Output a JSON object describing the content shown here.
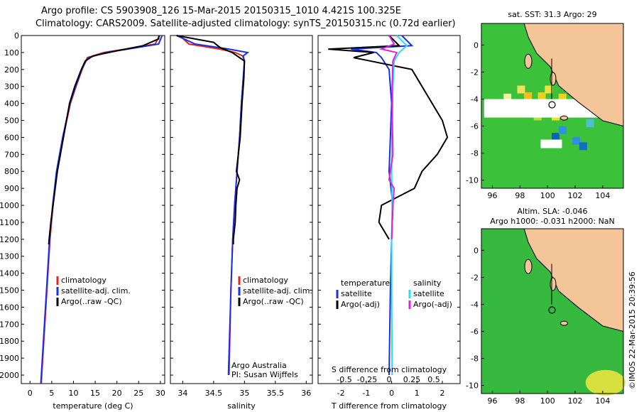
{
  "header": {
    "line1": "Argo profile: CS 5903908_126 15-Mar-2015 20150315_1010 4.421S 100.325E",
    "line2": "Climatology: CARS2009. Satellite-adjusted climatology: synTS_20150315.nc (0.72d earlier)"
  },
  "colors": {
    "climatology": "#e8231c",
    "satellite": "#1a2ee8",
    "argo": "#000000",
    "sat_cyan": "#22e0f0",
    "argo_magenta": "#e020e0",
    "land": "#f5c59a",
    "ocean_green": "#2fbf3a"
  },
  "depth_axis": {
    "ticks": [
      0,
      100,
      200,
      300,
      400,
      500,
      600,
      700,
      800,
      900,
      1000,
      1100,
      1200,
      1300,
      1400,
      1500,
      1600,
      1700,
      1800,
      1900,
      2000
    ]
  },
  "chart_data": [
    {
      "type": "line",
      "panel": "temperature",
      "xlabel": "temperature (deg C)",
      "xticks": [
        0,
        5,
        10,
        15,
        20,
        25,
        30
      ],
      "xlim": [
        -2,
        31
      ],
      "ylim": [
        2050,
        0
      ],
      "legend": [
        "climatology",
        "satellite-adj. clim.",
        "Argo(..raw -QC)"
      ],
      "series": [
        {
          "name": "climatology",
          "depth": [
            0,
            50,
            80,
            100,
            130,
            150,
            200,
            300,
            400,
            600,
            800,
            1000,
            1200,
            1500,
            2000,
            2050
          ],
          "values": [
            29.8,
            28.8,
            22,
            17,
            13.2,
            12.8,
            12.0,
            10.6,
            9.3,
            7.6,
            6.2,
            5.3,
            4.6,
            3.9,
            2.7,
            2.6
          ]
        },
        {
          "name": "satellite-adj. clim.",
          "depth": [
            0,
            50,
            80,
            100,
            130,
            150,
            200,
            300,
            400,
            600,
            800,
            1000,
            1200,
            1500,
            2000,
            2050
          ],
          "values": [
            30.4,
            29.6,
            22.5,
            17.5,
            13.5,
            12.9,
            11.9,
            10.5,
            9.2,
            7.5,
            6.1,
            5.2,
            4.5,
            3.8,
            2.6,
            2.5
          ]
        },
        {
          "name": "Argo(..raw -QC)",
          "depth": [
            0,
            20,
            60,
            90,
            120,
            150,
            200,
            300,
            400,
            600,
            800,
            1000,
            1100,
            1200,
            1230
          ],
          "values": [
            29.7,
            29.6,
            26,
            20,
            14.5,
            12.7,
            11.8,
            10.3,
            9.1,
            7.7,
            6.3,
            5.3,
            4.8,
            4.4,
            4.3
          ]
        }
      ]
    },
    {
      "type": "line",
      "panel": "salinity",
      "xlabel": "salinity",
      "xticks": [
        34,
        34.5,
        35,
        35.5,
        36
      ],
      "xlim": [
        33.8,
        36.1
      ],
      "ylim": [
        2050,
        0
      ],
      "legend": [
        "climatology",
        "satellite-adj. clim.",
        "Argo(..raw -QC)"
      ],
      "annotation": [
        "Argo Australia",
        "PI: Susan Wijffels"
      ],
      "series": [
        {
          "name": "climatology",
          "depth": [
            0,
            50,
            80,
            100,
            120,
            150,
            250,
            400,
            600,
            800,
            1000,
            1200,
            1500,
            2000
          ],
          "values": [
            33.95,
            34.1,
            34.6,
            34.85,
            34.97,
            35.0,
            34.98,
            34.95,
            34.92,
            34.88,
            34.84,
            34.81,
            34.78,
            34.75
          ]
        },
        {
          "name": "satellite-adj. clim.",
          "depth": [
            0,
            50,
            80,
            100,
            120,
            150,
            250,
            400,
            600,
            800,
            1000,
            1200,
            1500,
            2000
          ],
          "values": [
            33.9,
            34.2,
            34.75,
            35.05,
            34.98,
            35.0,
            34.98,
            34.95,
            34.92,
            34.88,
            34.84,
            34.81,
            34.78,
            34.74
          ]
        },
        {
          "name": "Argo(..raw -QC)",
          "depth": [
            0,
            40,
            70,
            100,
            150,
            250,
            400,
            600,
            800,
            850,
            900,
            1000,
            1100,
            1200,
            1230
          ],
          "values": [
            33.9,
            34.5,
            34.6,
            34.8,
            35.0,
            34.99,
            34.96,
            34.93,
            34.87,
            34.92,
            34.88,
            34.86,
            34.85,
            34.82,
            34.82
          ]
        }
      ]
    },
    {
      "type": "line",
      "panel": "difference",
      "xlabel": "T difference from climatology",
      "xlabel_top": "S difference from climatology",
      "xticks": [
        -2,
        -1,
        0,
        1,
        2
      ],
      "xticks_top": [
        "-0.5",
        "-0.25",
        "0",
        "0.25",
        "0.5"
      ],
      "xlim": [
        -2.9,
        2.7
      ],
      "ylim": [
        2050,
        0
      ],
      "legend_temperature_title": "temperature",
      "legend_salinity_title": "salinity",
      "legend_temperature": [
        "satellite",
        "Argo(-adj)"
      ],
      "legend_salinity": [
        "satellite",
        "Argo(-adj)"
      ],
      "series": [
        {
          "name": "temperature satellite",
          "depth": [
            0,
            60,
            80,
            100,
            130,
            200,
            400,
            600,
            800,
            1000,
            1200,
            1500,
            2000
          ],
          "values": [
            0.4,
            0.8,
            -1.6,
            -0.6,
            -0.4,
            -0.1,
            0.0,
            -0.05,
            -0.1,
            0.05,
            0.0,
            -0.05,
            -0.1
          ]
        },
        {
          "name": "temperature Argo(-adj)",
          "depth": [
            0,
            60,
            80,
            100,
            130,
            200,
            300,
            400,
            500,
            600,
            700,
            800,
            900,
            1000,
            1100,
            1200
          ],
          "values": [
            -0.1,
            0.3,
            -2.5,
            -0.7,
            -1.5,
            0.8,
            1.2,
            1.6,
            2.0,
            2.2,
            1.8,
            1.2,
            0.9,
            -0.4,
            -0.5,
            -0.1
          ]
        },
        {
          "name": "salinity satellite",
          "depth": [
            0,
            60,
            100,
            150,
            300,
            500,
            800,
            1000,
            1200,
            1500,
            2000
          ],
          "values": [
            0.2,
            0.6,
            0.3,
            0.1,
            0.05,
            0.02,
            0.0,
            0.02,
            0.0,
            0.0,
            0.02
          ]
        },
        {
          "name": "salinity Argo(-adj)",
          "depth": [
            0,
            50,
            80,
            100,
            150,
            300,
            500,
            700,
            850,
            900,
            1000,
            1200
          ],
          "values": [
            -0.1,
            0.1,
            -0.4,
            0.2,
            0.05,
            0.02,
            0.03,
            0.05,
            -0.1,
            0.1,
            0.05,
            0.0
          ]
        }
      ]
    }
  ],
  "maps": {
    "sst": {
      "title": "sat. SST: 31.3 Argo: 29",
      "xticks": [
        "96",
        "98",
        "100",
        "102",
        "104"
      ],
      "yticks": [
        "0",
        "-2",
        "-4",
        "-6",
        "-8",
        "-10"
      ]
    },
    "sla": {
      "title1": "Altim. SLA: -0.046",
      "title2": "Argo h1000: -0.031 h2000: NaN",
      "xticks": [
        "96",
        "98",
        "100",
        "102",
        "104"
      ],
      "yticks": [
        "0",
        "-2",
        "-4",
        "-6",
        "-8",
        "-10"
      ]
    },
    "credit": "©IMOS 22-Mar-2015 20:39:56"
  }
}
